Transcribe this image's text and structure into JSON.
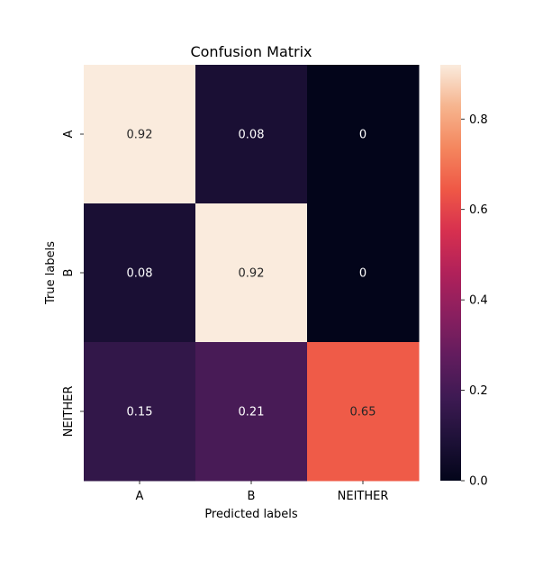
{
  "chart_data": {
    "type": "heatmap",
    "title": "Confusion Matrix",
    "xlabel": "Predicted labels",
    "ylabel": "True labels",
    "x_categories": [
      "A",
      "B",
      "NEITHER"
    ],
    "y_categories": [
      "A",
      "B",
      "NEITHER"
    ],
    "values": [
      [
        0.92,
        0.08,
        0
      ],
      [
        0.08,
        0.92,
        0
      ],
      [
        0.15,
        0.21,
        0.65
      ]
    ],
    "colorbar": {
      "colormap": "rocket",
      "range": [
        0,
        0.92
      ],
      "ticks": [
        0.0,
        0.2,
        0.4,
        0.6,
        0.8
      ],
      "tick_labels": [
        "0.0",
        "0.2",
        "0.4",
        "0.6",
        "0.8"
      ]
    },
    "cell_text_colors": {
      "light_background": "#262626",
      "dark_background": "#ffffff"
    }
  }
}
